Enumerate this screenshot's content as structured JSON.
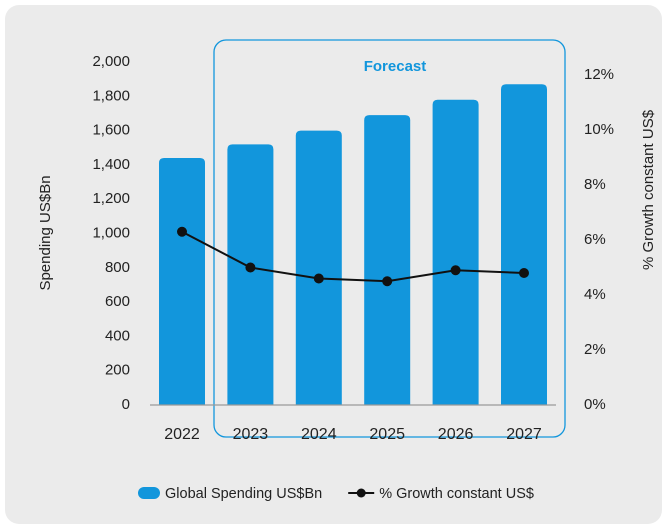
{
  "chart_data": {
    "type": "bar",
    "categories": [
      "2022",
      "2023",
      "2024",
      "2025",
      "2026",
      "2027"
    ],
    "series": [
      {
        "name": "Global Spending US$Bn",
        "type": "bar",
        "color": "#1296dc",
        "values": [
          1440,
          1520,
          1600,
          1690,
          1780,
          1870
        ]
      },
      {
        "name": "% Growth constant US$",
        "type": "line",
        "axis": "y2",
        "color": "#111111",
        "values": [
          6.3,
          5.0,
          4.6,
          4.5,
          4.9,
          4.8
        ]
      }
    ],
    "ylabel": "Spending US$Bn",
    "y2label": "% Growth constant US$",
    "ylim": [
      0,
      2000
    ],
    "yticks": [
      0,
      200,
      400,
      600,
      800,
      {
        "value": 1000,
        "label": "1,000"
      },
      {
        "value": 1200,
        "label": "1,200"
      },
      {
        "value": 1400,
        "label": "1,400"
      },
      {
        "value": 1600,
        "label": "1,600"
      },
      {
        "value": 1800,
        "label": "1,800"
      },
      {
        "value": 2000,
        "label": "2,000"
      }
    ],
    "y2lim": [
      0,
      12
    ],
    "y2ticks": [
      {
        "value": 0,
        "label": "0%"
      },
      {
        "value": 2,
        "label": "2%"
      },
      {
        "value": 4,
        "label": "4%"
      },
      {
        "value": 6,
        "label": "6%"
      },
      {
        "value": 8,
        "label": "8%"
      },
      {
        "value": 10,
        "label": "10%"
      },
      {
        "value": 12,
        "label": "12%"
      }
    ],
    "annotations": [
      "Forecast"
    ],
    "legend": "bottom"
  }
}
